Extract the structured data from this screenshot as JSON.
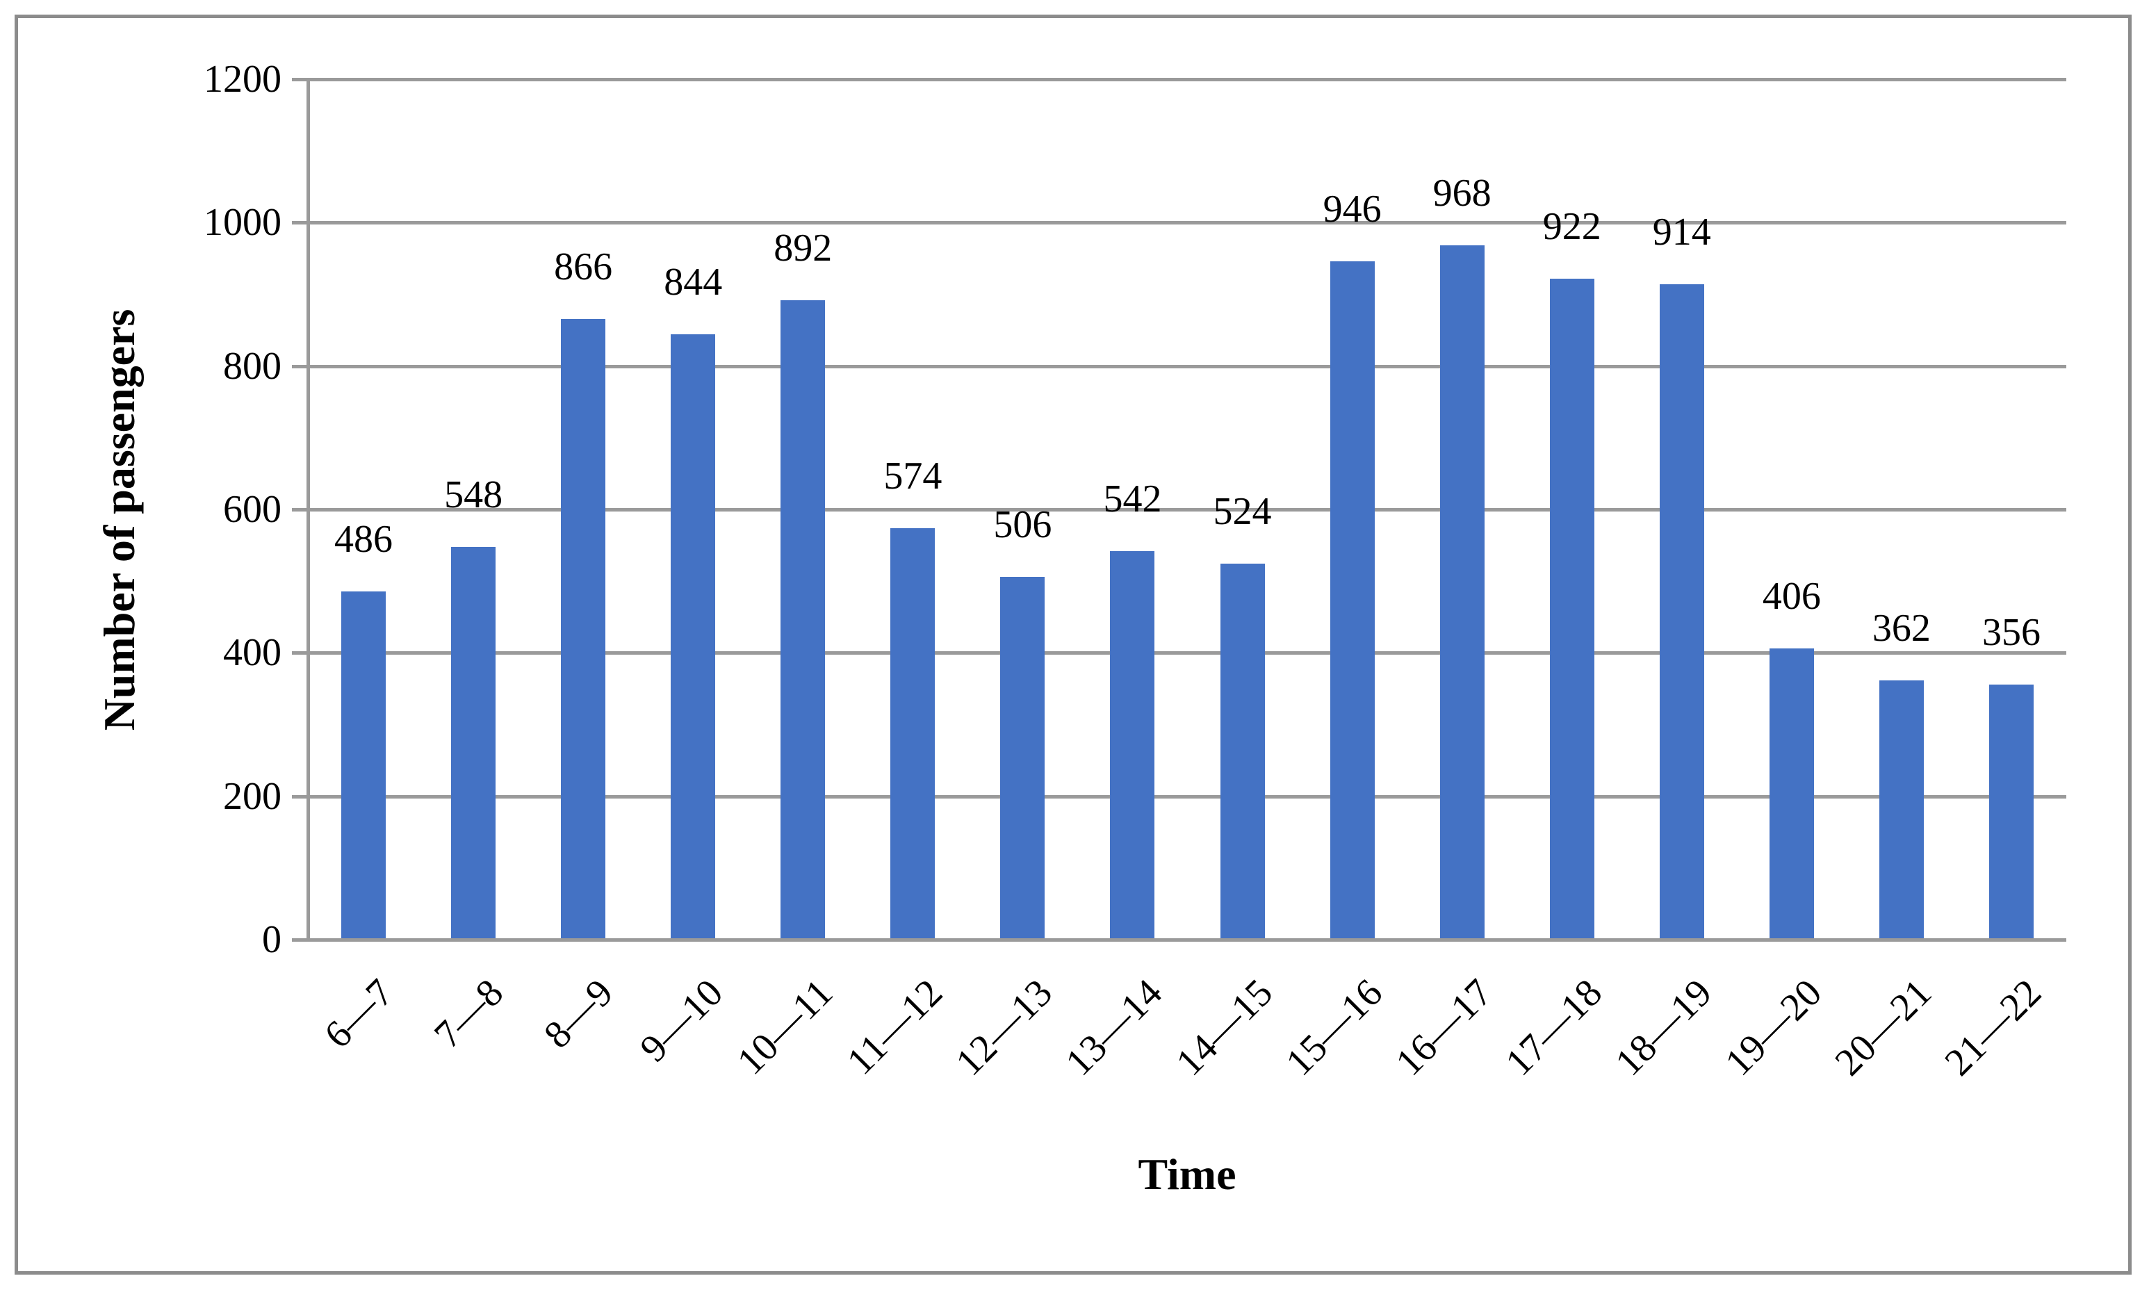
{
  "figure": {
    "background_color": "#ffffff",
    "border_color": "#8c8c8c"
  },
  "chart_data": {
    "type": "bar",
    "categories": [
      "6—7",
      "7—8",
      "8—9",
      "9—10",
      "10—11",
      "11—12",
      "12—13",
      "13—14",
      "14—15",
      "15—16",
      "16—17",
      "17—18",
      "18—19",
      "19—20",
      "20—21",
      "21—22"
    ],
    "values": [
      486,
      548,
      866,
      844,
      892,
      574,
      506,
      542,
      524,
      946,
      968,
      922,
      914,
      406,
      362,
      356
    ],
    "xlabel": "Time",
    "ylabel": "Number of passengers",
    "ylim": [
      0,
      1200
    ],
    "yticks": [
      0,
      200,
      400,
      600,
      800,
      1000,
      1200
    ],
    "grid": true,
    "legend": false,
    "data_labels_position": "outside-end",
    "x_tick_rotation_deg": 45,
    "bar_color": "#4472c4",
    "grid_color": "#9a9a9a",
    "text_color": "#000000"
  }
}
